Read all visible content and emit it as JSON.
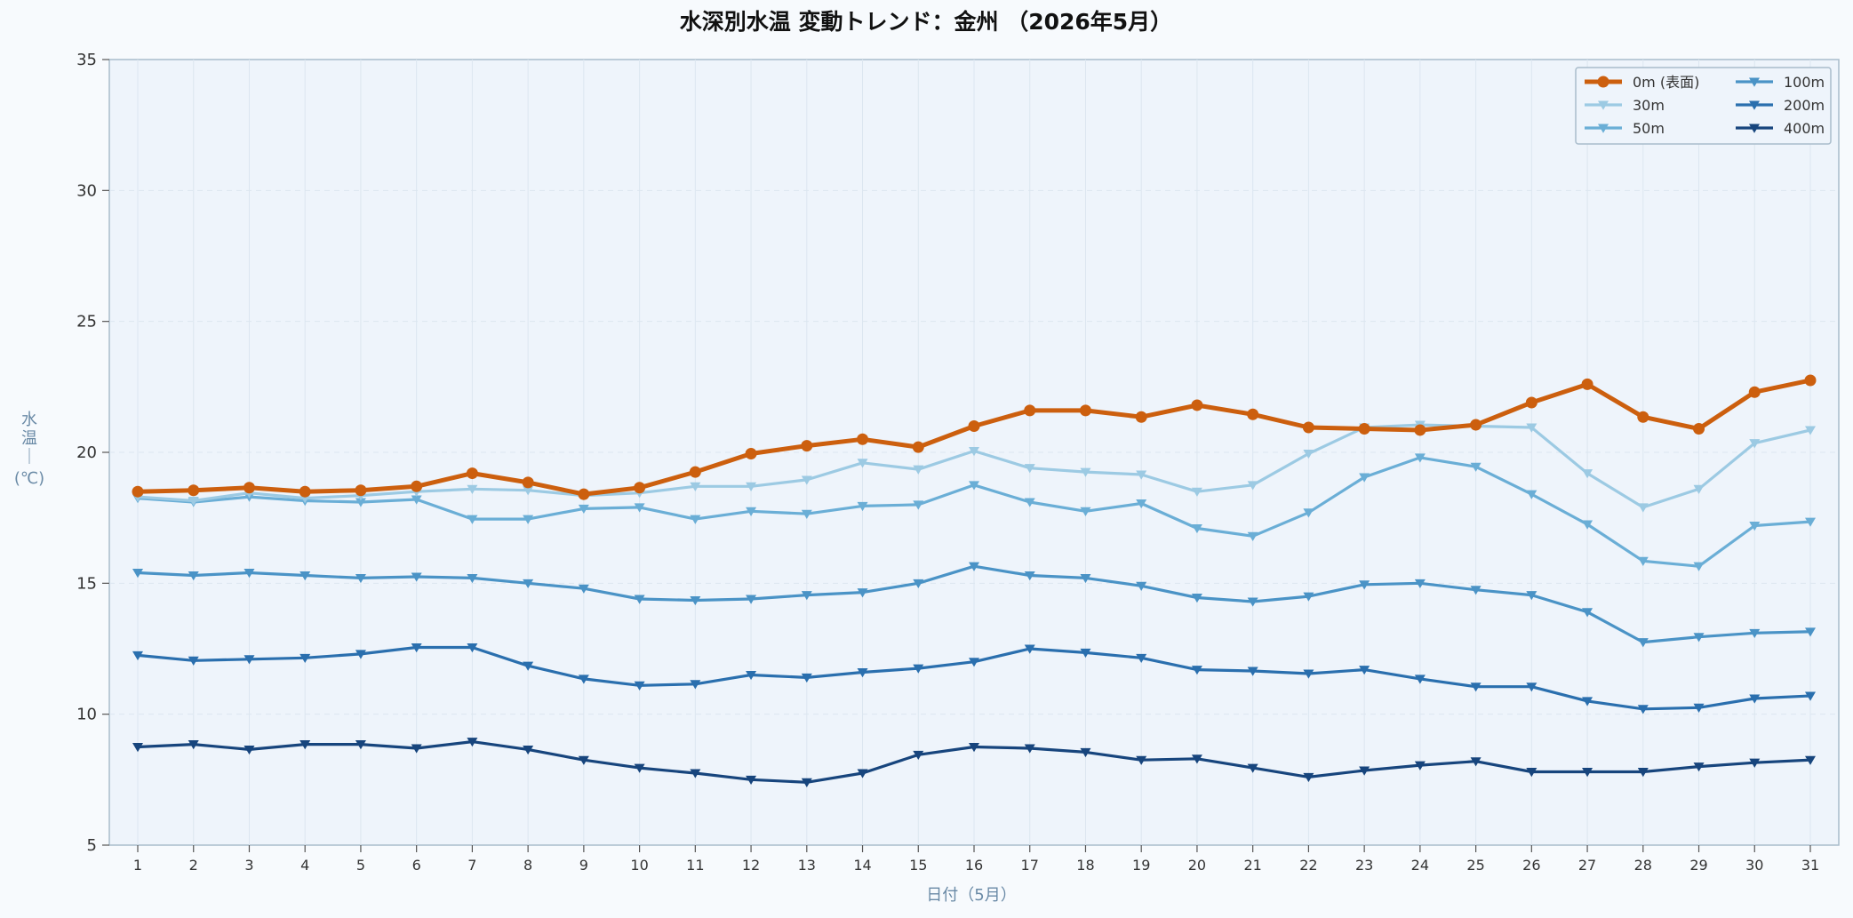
{
  "chart_data": {
    "type": "line",
    "title": "水深別水温 変動トレンド：金州 （2026年5月）",
    "xlabel": "日付（5月）",
    "ylabel": "水温（℃）",
    "ylabel_chars": [
      "水",
      "温",
      "｜",
      "(℃)"
    ],
    "ylim": [
      5,
      35
    ],
    "yticks": [
      5,
      10,
      15,
      20,
      25,
      30,
      35
    ],
    "x": [
      1,
      2,
      3,
      4,
      5,
      6,
      7,
      8,
      9,
      10,
      11,
      12,
      13,
      14,
      15,
      16,
      17,
      18,
      19,
      20,
      21,
      22,
      23,
      24,
      25,
      26,
      27,
      28,
      29,
      30,
      31
    ],
    "grid": true,
    "legend_position": "top-right",
    "series": [
      {
        "name": "0m (表面)",
        "color": "#cc5f0e",
        "marker": "circle",
        "emphasis": true,
        "values": [
          18.5,
          18.55,
          18.65,
          18.5,
          18.55,
          18.7,
          19.2,
          18.85,
          18.4,
          18.65,
          19.25,
          19.95,
          20.25,
          20.5,
          20.2,
          21.0,
          21.6,
          21.6,
          21.35,
          21.8,
          21.45,
          20.95,
          20.9,
          20.85,
          21.05,
          21.9,
          22.6,
          21.35,
          20.9,
          22.3,
          22.75
        ]
      },
      {
        "name": "30m",
        "color": "#9ccae3",
        "marker": "triangle-down",
        "values": [
          18.3,
          18.15,
          18.45,
          18.25,
          18.35,
          18.5,
          18.6,
          18.55,
          18.35,
          18.45,
          18.7,
          18.7,
          18.95,
          19.6,
          19.35,
          20.05,
          19.4,
          19.25,
          19.15,
          18.5,
          18.75,
          19.95,
          20.95,
          21.05,
          21.0,
          20.95,
          19.2,
          17.9,
          18.6,
          20.35,
          20.85
        ]
      },
      {
        "name": "50m",
        "color": "#6aaed6",
        "marker": "triangle-down",
        "values": [
          18.25,
          18.1,
          18.3,
          18.15,
          18.1,
          18.2,
          17.45,
          17.45,
          17.85,
          17.9,
          17.45,
          17.75,
          17.65,
          17.95,
          18.0,
          18.75,
          18.1,
          17.75,
          18.05,
          17.1,
          16.8,
          17.7,
          19.05,
          19.8,
          19.45,
          18.4,
          17.25,
          15.85,
          15.65,
          17.2,
          17.35
        ]
      },
      {
        "name": "100m",
        "color": "#4a93c6",
        "marker": "triangle-down",
        "values": [
          15.4,
          15.3,
          15.4,
          15.3,
          15.2,
          15.25,
          15.2,
          15.0,
          14.8,
          14.4,
          14.35,
          14.4,
          14.55,
          14.65,
          15.0,
          15.65,
          15.3,
          15.2,
          14.9,
          14.45,
          14.3,
          14.5,
          14.95,
          15.0,
          14.75,
          14.55,
          13.9,
          12.75,
          12.95,
          13.1,
          13.15
        ]
      },
      {
        "name": "200m",
        "color": "#2a6fae",
        "marker": "triangle-down",
        "values": [
          12.25,
          12.05,
          12.1,
          12.15,
          12.3,
          12.55,
          12.55,
          11.85,
          11.35,
          11.1,
          11.15,
          11.5,
          11.4,
          11.6,
          11.75,
          12.0,
          12.5,
          12.35,
          12.15,
          11.7,
          11.65,
          11.55,
          11.7,
          11.35,
          11.05,
          11.05,
          10.5,
          10.2,
          10.25,
          10.6,
          10.7
        ]
      },
      {
        "name": "400m",
        "color": "#17457d",
        "marker": "triangle-down",
        "values": [
          8.75,
          8.85,
          8.65,
          8.85,
          8.85,
          8.7,
          8.95,
          8.65,
          8.25,
          7.95,
          7.75,
          7.5,
          7.4,
          7.75,
          8.45,
          8.75,
          8.7,
          8.55,
          8.25,
          8.3,
          7.95,
          7.6,
          7.85,
          8.05,
          8.2,
          7.8,
          7.8,
          7.8,
          8.0,
          8.15,
          8.25
        ]
      }
    ]
  }
}
